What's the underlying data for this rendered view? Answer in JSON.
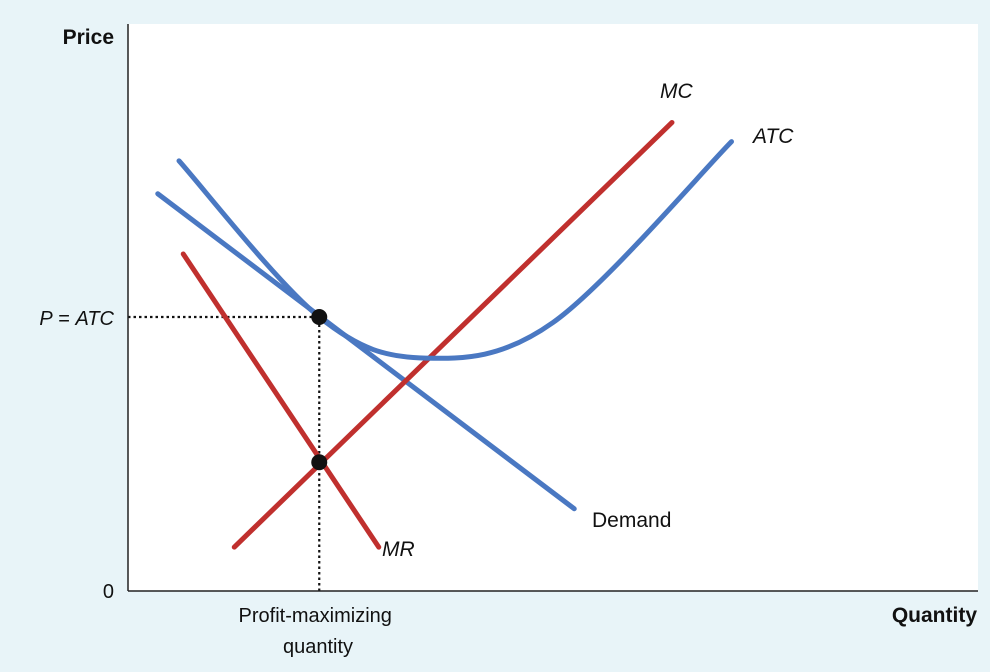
{
  "chart_data": {
    "type": "line",
    "title": "",
    "xlabel": "Quantity",
    "ylabel": "Price",
    "origin_label": "0",
    "xlim": [
      0,
      100
    ],
    "ylim": [
      0,
      100
    ],
    "grid": false,
    "colors": {
      "blue": "#4a78c2",
      "red": "#c0302e",
      "plot_bg": "#ffffff",
      "page_bg": "#e8f4f8"
    },
    "series": [
      {
        "name": "Demand",
        "color": "#4a78c2",
        "curve": "straight",
        "x": [
          3.5,
          52.5
        ],
        "y": [
          145,
          30
        ]
      },
      {
        "name": "MR",
        "color": "#c0302e",
        "curve": "straight",
        "x": [
          6.5,
          29.5
        ],
        "y": [
          123,
          16
        ]
      },
      {
        "name": "MC",
        "color": "#c0302e",
        "curve": "straight",
        "x": [
          12.5,
          64
        ],
        "y": [
          16,
          171
        ]
      },
      {
        "name": "ATC",
        "color": "#4a78c2",
        "curve": "smooth",
        "x": [
          6,
          22.5,
          35,
          50,
          71
        ],
        "y": [
          157,
          100,
          85,
          98,
          164
        ]
      }
    ],
    "markers": [
      {
        "x": 22.5,
        "y": 100
      },
      {
        "x": 22.5,
        "y": 47
      }
    ],
    "reference_lines": [
      {
        "label": "P = ATC",
        "axis": "y",
        "value": 100,
        "to_x": 22.5
      },
      {
        "label": "Profit-maximizing quantity",
        "axis": "x",
        "value": 22.5,
        "to_y": 100
      }
    ],
    "x_tick_label_lines": [
      "Profit-maximizing",
      "quantity"
    ],
    "y_tick_label_parts": {
      "p": "P",
      "eq": " = ",
      "atc": "ATC"
    }
  }
}
